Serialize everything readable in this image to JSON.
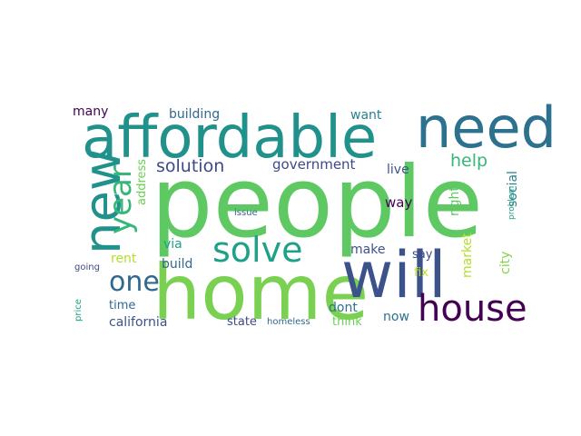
{
  "words": {
    "people": "people",
    "home": "home",
    "affordable": "affordable",
    "need": "need",
    "new": "new",
    "will": "will",
    "house": "house",
    "year": "year",
    "solve": "solve",
    "one": "one",
    "solution": "solution",
    "help": "help",
    "government": "government",
    "many": "many",
    "building": "building",
    "want": "want",
    "live": "live",
    "address": "address",
    "social": "social",
    "right": "right",
    "way": "way",
    "problem": "problem",
    "issue": "issue",
    "via": "via",
    "make": "make",
    "say": "say",
    "rent": "rent",
    "build": "build",
    "fix": "fix",
    "market": "market",
    "city": "city",
    "going": "going",
    "time": "time",
    "dont": "dont",
    "price": "price",
    "california": "california",
    "state": "state",
    "homeless": "homeless",
    "think": "think",
    "now": "now"
  },
  "colors": {
    "people": "#5ec962",
    "home": "#7ad151",
    "affordable": "#21918c",
    "need": "#2c728e",
    "new": "#21918c",
    "will": "#3b528b",
    "house": "#440154",
    "year": "#35b779",
    "solve": "#1fa187",
    "one": "#31688e",
    "solution": "#3e4989",
    "help": "#35b779",
    "government": "#3e4989",
    "many": "#440154",
    "building": "#31688e",
    "want": "#26828e",
    "live": "#3b528b",
    "address": "#6ece58",
    "social": "#26828e",
    "right": "#5ec962",
    "way": "#440154",
    "problem": "#1f9e89",
    "issue": "#31688e",
    "via": "#1fa187",
    "make": "#3b528b",
    "say": "#3e4989",
    "rent": "#b5de2b",
    "build": "#31688e",
    "fix": "#c2df23",
    "market": "#b5de2b",
    "city": "#86d549",
    "going": "#3e4989",
    "time": "#31688e",
    "dont": "#2c728e",
    "price": "#1fa187",
    "california": "#3b528b",
    "state": "#3e4989",
    "homeless": "#31688e",
    "think": "#6ece58",
    "now": "#2c728e"
  }
}
